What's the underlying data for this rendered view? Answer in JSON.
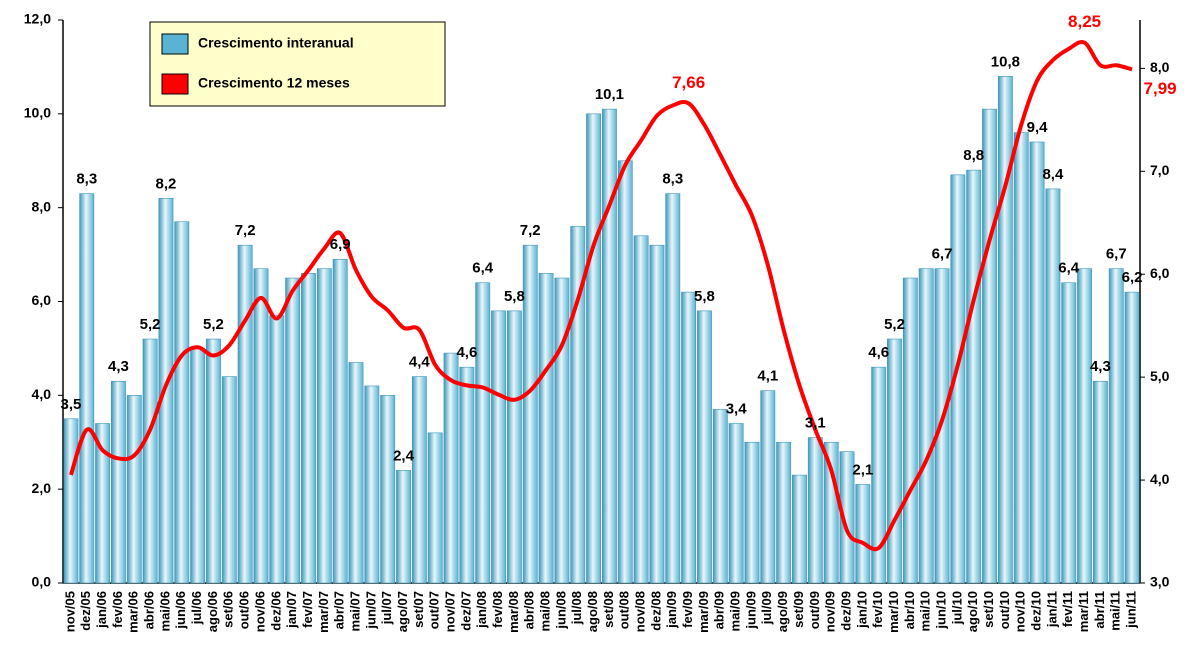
{
  "chart_data": {
    "type": "bar-line",
    "categories": [
      "nov/05",
      "dez/05",
      "jan/06",
      "fev/06",
      "mar/06",
      "abr/06",
      "mai/06",
      "jun/06",
      "jul/06",
      "ago/06",
      "set/06",
      "out/06",
      "nov/06",
      "dez/06",
      "jan/07",
      "fev/07",
      "mar/07",
      "abr/07",
      "mai/07",
      "jun/07",
      "jul/07",
      "ago/07",
      "set/07",
      "out/07",
      "nov/07",
      "dez/07",
      "jan/08",
      "fev/08",
      "mar/08",
      "abr/08",
      "mai/08",
      "jun/08",
      "jul/08",
      "ago/08",
      "set/08",
      "out/08",
      "nov/08",
      "dez/08",
      "jan/09",
      "fev/09",
      "mar/09",
      "abr/09",
      "mai/09",
      "jun/09",
      "jul/09",
      "ago/09",
      "set/09",
      "out/09",
      "nov/09",
      "dez/09",
      "jan/10",
      "fev/10",
      "mar/10",
      "abr/10",
      "mai/10",
      "jun/10",
      "jul/10",
      "ago/10",
      "set/10",
      "out/10",
      "nov/10",
      "dez/10",
      "jan/11",
      "fev/11",
      "mar/11",
      "abr/11",
      "mai/11",
      "jun/11"
    ],
    "series": [
      {
        "name": "Crescimento interanual",
        "color": "#5bb3d3",
        "type": "bar",
        "values": [
          3.5,
          8.3,
          3.4,
          4.3,
          4.0,
          5.2,
          8.2,
          7.7,
          5.0,
          5.2,
          4.4,
          7.2,
          6.7,
          5.7,
          6.5,
          6.6,
          6.7,
          6.9,
          4.7,
          4.2,
          4.0,
          2.4,
          4.4,
          3.2,
          4.9,
          4.6,
          6.4,
          5.8,
          5.8,
          7.2,
          6.6,
          6.5,
          7.6,
          10.0,
          10.1,
          9.0,
          7.4,
          7.2,
          8.3,
          6.2,
          5.8,
          3.7,
          3.4,
          3.0,
          4.1,
          3.0,
          2.3,
          3.1,
          3.0,
          2.8,
          2.1,
          4.6,
          5.2,
          6.5,
          6.7,
          6.7,
          8.7,
          8.8,
          10.1,
          10.8,
          9.6,
          9.4,
          8.4,
          6.4,
          6.7,
          4.3,
          6.7,
          6.2
        ],
        "value_labels": [
          "3,5",
          "8,3",
          null,
          "4,3",
          null,
          "5,2",
          "8,2",
          null,
          null,
          "5,2",
          null,
          "7,2",
          null,
          null,
          null,
          null,
          null,
          "6,9",
          null,
          null,
          null,
          "2,4",
          "4,4",
          null,
          null,
          "4,6",
          "6,4",
          null,
          "5,8",
          "7,2",
          null,
          null,
          null,
          null,
          "10,1",
          null,
          null,
          null,
          "8,3",
          null,
          "5,8",
          null,
          "3,4",
          null,
          "4,1",
          null,
          null,
          "3,1",
          null,
          null,
          "2,1",
          "4,6",
          "5,2",
          null,
          null,
          "6,7",
          null,
          "8,8",
          null,
          "10,8",
          null,
          "9,4",
          "8,4",
          "6,4",
          null,
          "4,3",
          "6,7",
          "6,2"
        ]
      },
      {
        "name": "Crescimento 12 meses",
        "color": "#ff0000",
        "type": "line",
        "axis": "y2",
        "values": [
          4.05,
          4.49,
          4.29,
          4.21,
          4.24,
          4.49,
          4.92,
          5.21,
          5.29,
          5.21,
          5.31,
          5.55,
          5.77,
          5.57,
          5.84,
          6.04,
          6.25,
          6.4,
          6.04,
          5.78,
          5.65,
          5.48,
          5.46,
          5.12,
          4.97,
          4.92,
          4.9,
          4.83,
          4.78,
          4.87,
          5.07,
          5.31,
          5.75,
          6.28,
          6.67,
          7.06,
          7.3,
          7.54,
          7.64,
          7.66,
          7.45,
          7.16,
          6.86,
          6.57,
          6.09,
          5.46,
          4.92,
          4.49,
          4.1,
          3.51,
          3.39,
          3.34,
          3.61,
          3.9,
          4.19,
          4.58,
          5.12,
          5.75,
          6.33,
          6.86,
          7.45,
          7.88,
          8.08,
          8.19,
          8.25,
          8.03,
          8.03,
          7.99
        ],
        "value_labels": [
          null,
          null,
          null,
          null,
          null,
          null,
          null,
          null,
          null,
          null,
          null,
          null,
          null,
          null,
          null,
          null,
          null,
          null,
          null,
          null,
          null,
          null,
          null,
          null,
          null,
          null,
          null,
          null,
          null,
          null,
          null,
          null,
          null,
          null,
          null,
          null,
          null,
          null,
          null,
          "7,66",
          null,
          null,
          null,
          null,
          null,
          null,
          null,
          null,
          null,
          null,
          null,
          null,
          null,
          null,
          null,
          null,
          null,
          null,
          null,
          null,
          null,
          null,
          null,
          null,
          "8,25",
          null,
          null,
          "7,99"
        ]
      }
    ],
    "ylim": [
      0,
      12
    ],
    "yticks": [
      {
        "value": 0,
        "label": "0,0"
      },
      {
        "value": 2,
        "label": "2,0"
      },
      {
        "value": 4,
        "label": "4,0"
      },
      {
        "value": 6,
        "label": "6,0"
      },
      {
        "value": 8,
        "label": "8,0"
      },
      {
        "value": 10,
        "label": "10,0"
      },
      {
        "value": 12,
        "label": "12,0"
      }
    ],
    "y2lim": [
      3,
      8.47
    ],
    "y2ticks": [
      {
        "value": 3,
        "label": "3,0"
      },
      {
        "value": 4,
        "label": "4,0"
      },
      {
        "value": 5,
        "label": "5,0"
      },
      {
        "value": 6,
        "label": "6,0"
      },
      {
        "value": 7,
        "label": "7,0"
      },
      {
        "value": 8,
        "label": "8,0"
      }
    ],
    "legend": "top-left"
  }
}
